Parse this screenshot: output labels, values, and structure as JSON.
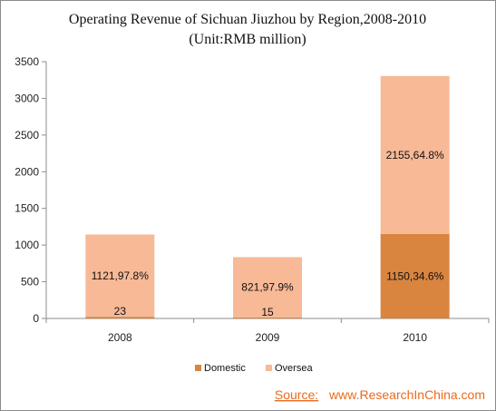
{
  "chart_data": {
    "type": "bar",
    "stacked": true,
    "title": "Operating Revenue of Sichuan Jiuzhou by Region,2008-2010",
    "subtitle": "(Unit:RMB million)",
    "categories": [
      "2008",
      "2009",
      "2010"
    ],
    "series": [
      {
        "name": "Domestic",
        "values": [
          23,
          15,
          1150
        ],
        "labels": [
          "23",
          "15",
          "1150,34.6%"
        ],
        "color": "#d9843f"
      },
      {
        "name": "Oversea",
        "values": [
          1121,
          821,
          2155
        ],
        "labels": [
          "1121,97.8%",
          "821,97.9%",
          "2155,64.8%"
        ],
        "color": "#f8b996"
      }
    ],
    "ylim": [
      0,
      3500
    ],
    "yticks": [
      "0",
      "500",
      "1000",
      "1500",
      "2000",
      "2500",
      "3000",
      "3500"
    ],
    "grid": false,
    "legend": "bottom"
  },
  "source": {
    "label": "Source:",
    "text": "www.ResearchInChina.com"
  },
  "colors": {
    "source": "#e86b1e",
    "axis": "#8c8c8c"
  }
}
